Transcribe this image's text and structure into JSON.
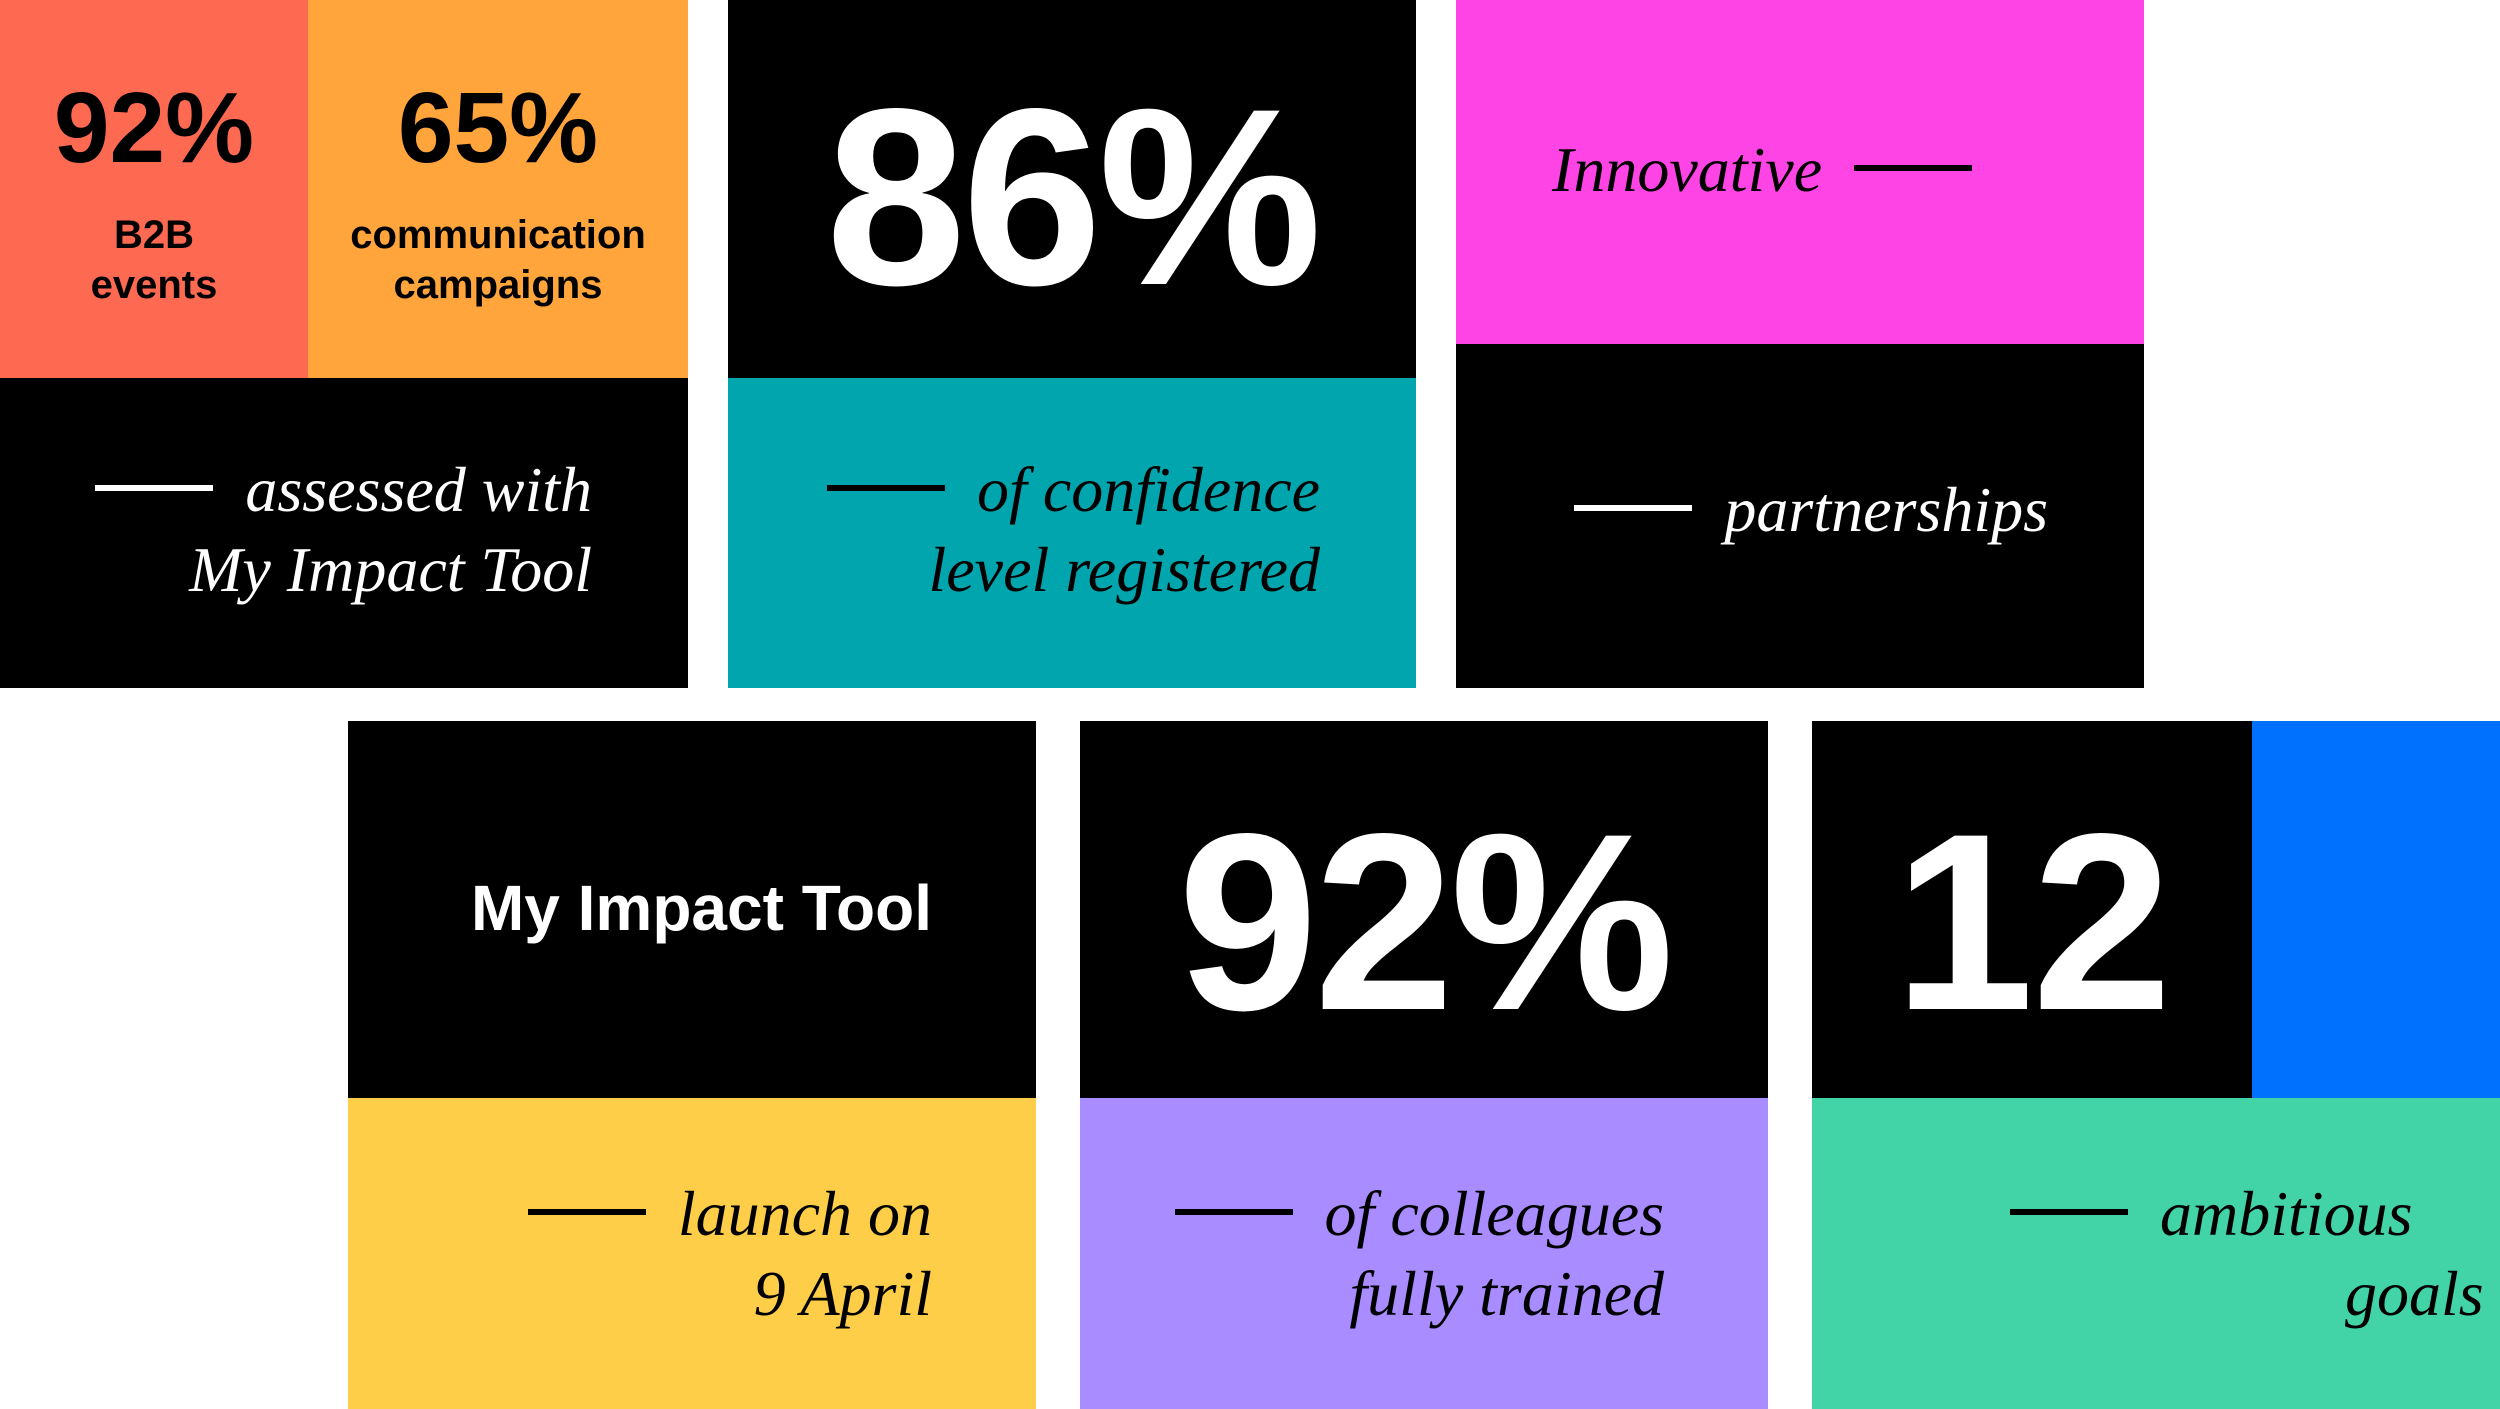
{
  "tiles": {
    "b2b": {
      "value": "92%",
      "label_line1": "B2B",
      "label_line2": "events"
    },
    "campaigns": {
      "value": "65%",
      "label_line1": "communication",
      "label_line2": "campaigns"
    },
    "assessed": {
      "line1": "assessed with",
      "line2": "My Impact Tool"
    },
    "confidence": {
      "value": "86%",
      "line1": "of confidence",
      "line2": "level registered"
    },
    "innovative": {
      "word": "Innovative",
      "caption": "partnerships"
    },
    "tool": {
      "title": "My Impact Tool",
      "line1": "launch on",
      "line2": "9 April"
    },
    "trained": {
      "value": "92%",
      "line1": "of colleagues",
      "line2": "fully trained"
    },
    "goals": {
      "value": "12",
      "line1": "ambitious",
      "line2": "goals"
    }
  },
  "colors": {
    "coral": "#fe6951",
    "orange": "#ffa53b",
    "teal": "#00a5ad",
    "pink": "#ff44e6",
    "yellow": "#fece48",
    "lavender": "#a98cff",
    "blue": "#0070ff",
    "green": "#42d4a7",
    "black": "#000000"
  }
}
